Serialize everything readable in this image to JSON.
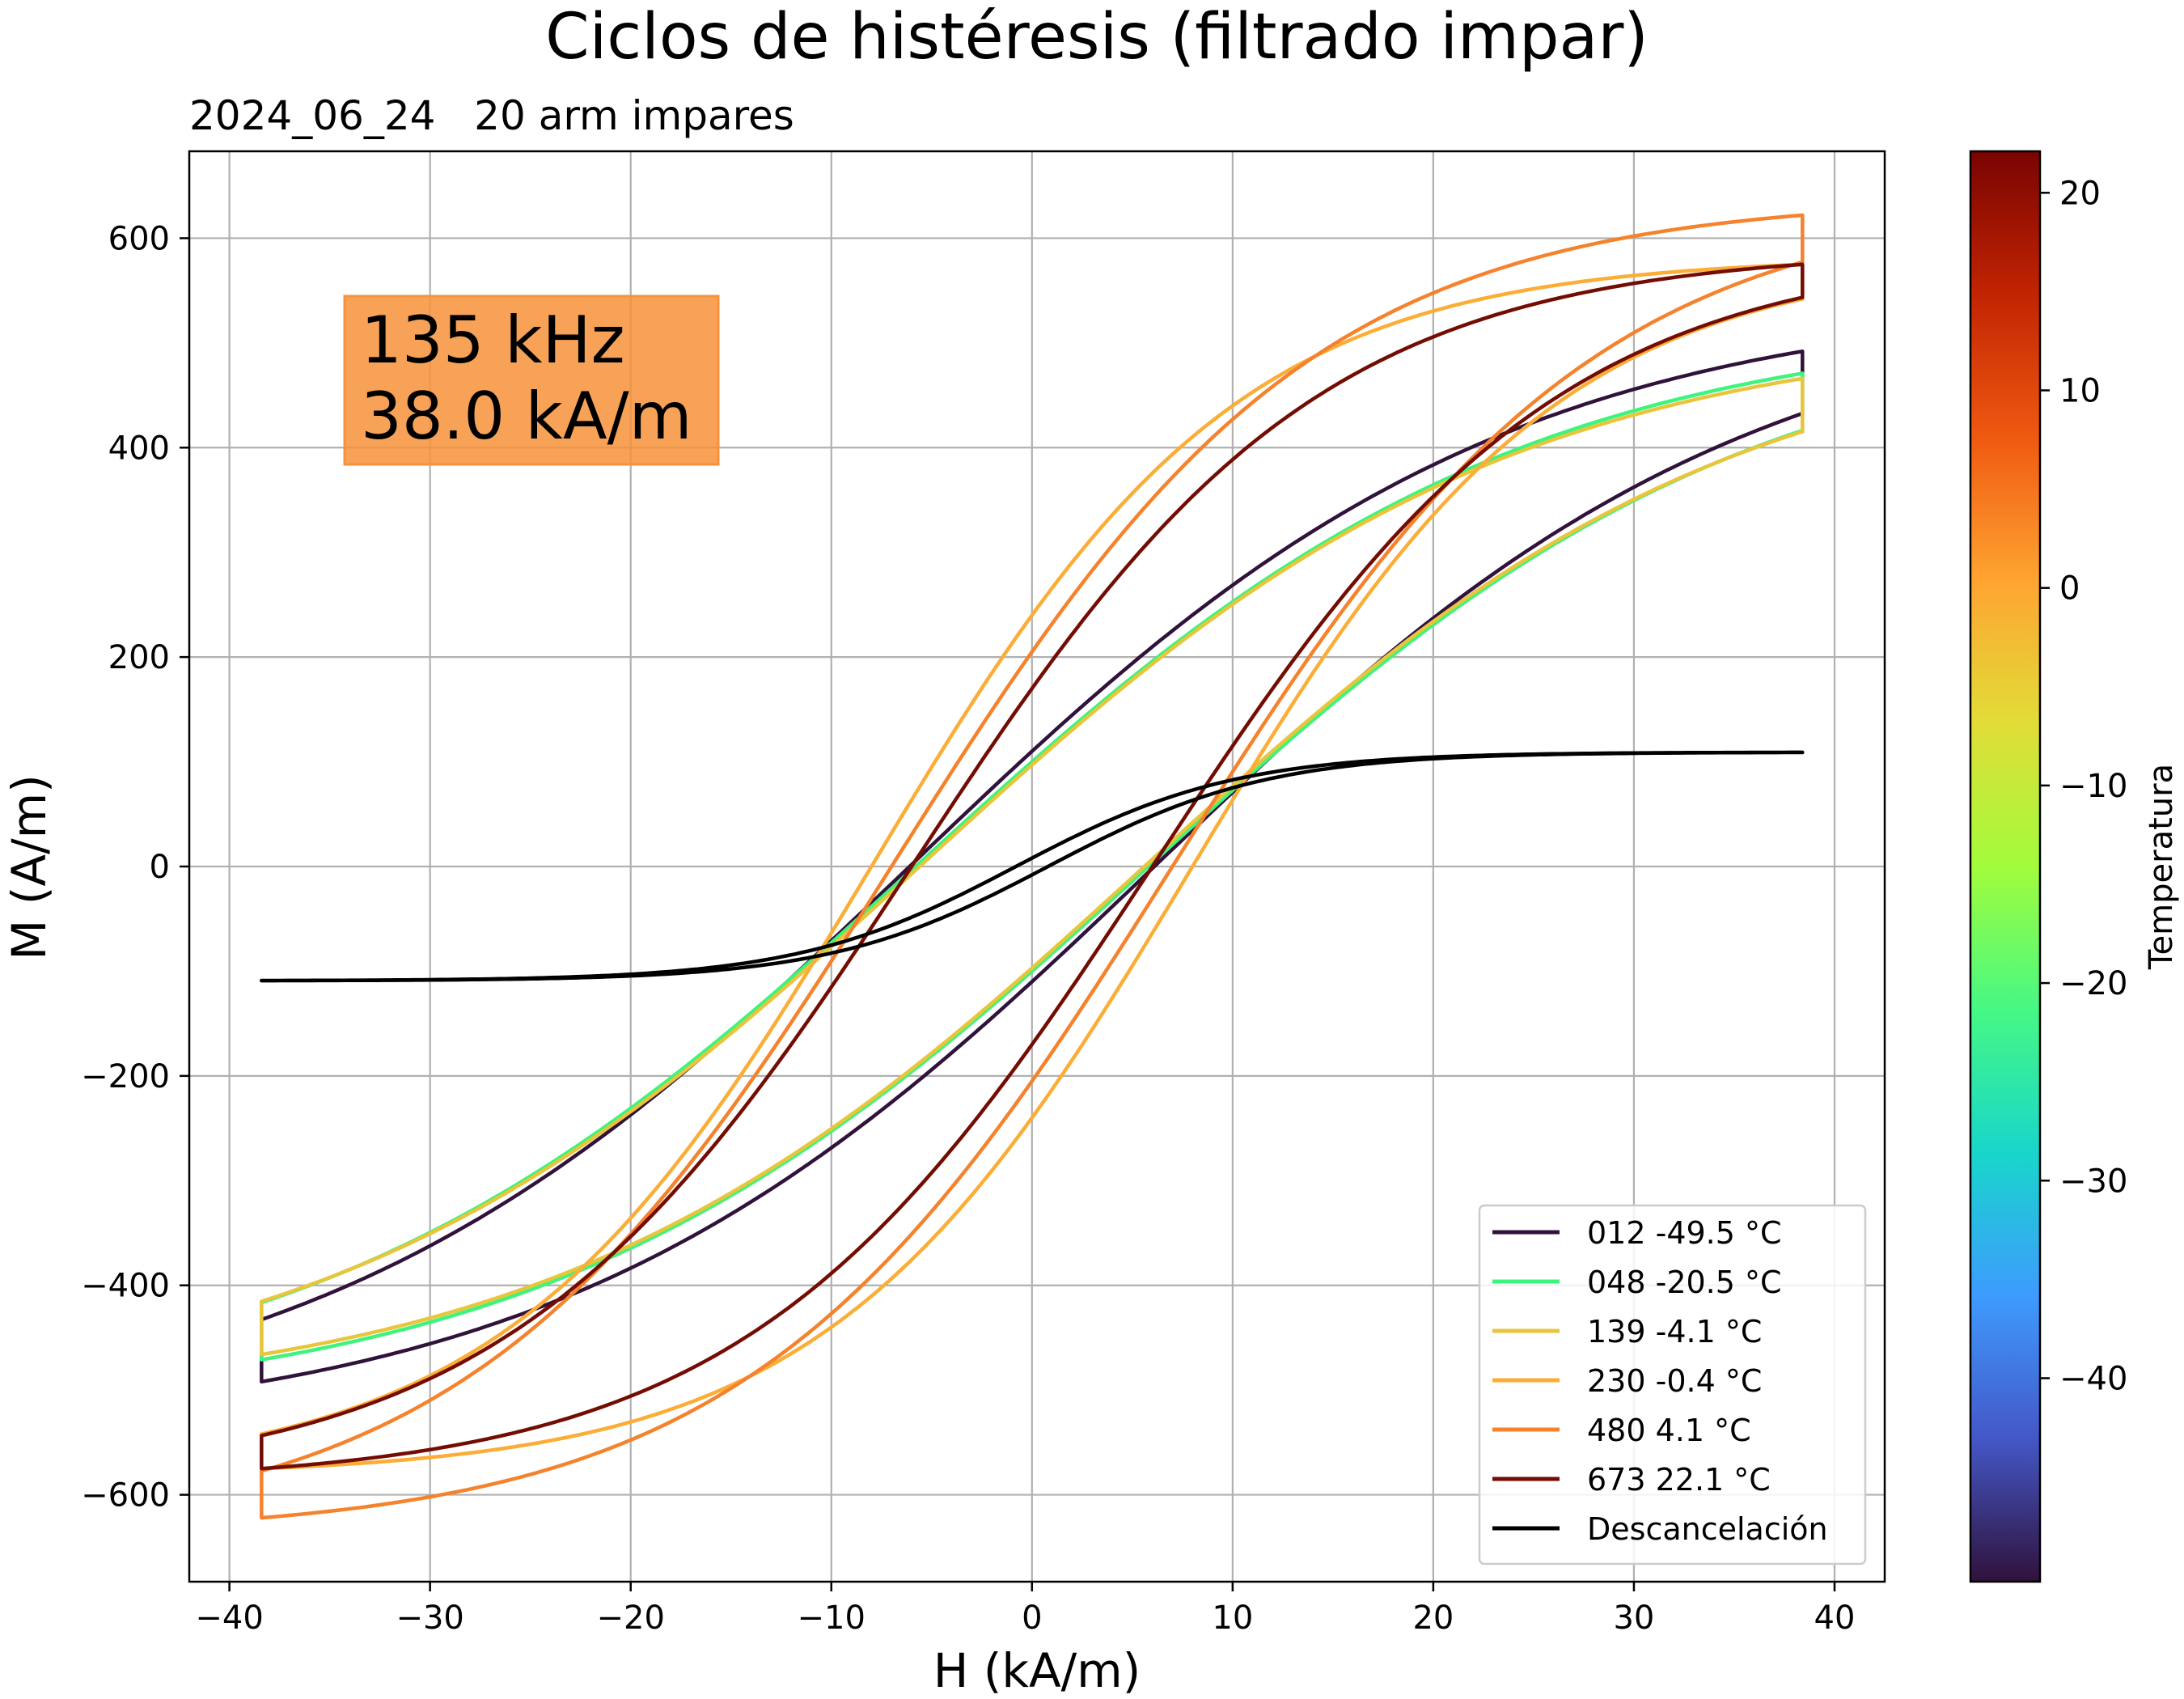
{
  "chart_data": {
    "type": "line",
    "title": "Ciclos de histéresis (filtrado impar)",
    "subtitle": "2024_06_24   20 arm impares",
    "xlabel": "H (kA/m)",
    "ylabel": "M (A/m)",
    "xlim": [
      -42,
      42.5
    ],
    "ylim": [
      -683,
      683
    ],
    "xticks": [
      -40,
      -30,
      -20,
      -10,
      0,
      10,
      20,
      30,
      40
    ],
    "yticks": [
      -600,
      -400,
      -200,
      0,
      200,
      400,
      600
    ],
    "xtick_labels": [
      "−40",
      "−30",
      "−20",
      "−10",
      "0",
      "10",
      "20",
      "30",
      "40"
    ],
    "ytick_labels": [
      "−600",
      "−400",
      "−200",
      "0",
      "200",
      "400",
      "600"
    ],
    "grid": true,
    "legend_position": "lower-right",
    "annotation": {
      "line1": "135 kHz",
      "line2": "38.0 kA/m",
      "color": "#f7923a",
      "position": "upper-left"
    },
    "colorbar": {
      "label": "Temperatura",
      "colormap": "turbo",
      "range": [
        -50.3,
        22.1
      ],
      "ticks": [
        20,
        10,
        0,
        -10,
        -20,
        -30,
        -40
      ],
      "tick_labels": [
        "20",
        "10",
        "0",
        "−10",
        "−20",
        "−30",
        "−40"
      ]
    },
    "series": [
      {
        "name": "012  -49.5 °C",
        "color": "#30123b",
        "Hmax": 38.4,
        "Mmax": 492,
        "Mr": 110,
        "Hc": 6.1
      },
      {
        "name": "048  -20.5 °C",
        "color": "#3df47c",
        "Hmax": 38.4,
        "Mmax": 471,
        "Mr": 100,
        "Hc": 5.8
      },
      {
        "name": "139  -4.1 °C",
        "color": "#e8c53b",
        "Hmax": 38.4,
        "Mmax": 466,
        "Mr": 97,
        "Hc": 5.6
      },
      {
        "name": "230  -0.4 °C",
        "color": "#fbad36",
        "Hmax": 38.4,
        "Mmax": 575,
        "Mr": 240,
        "Hc": 8.0
      },
      {
        "name": "480  4.1 °C",
        "color": "#f5822c",
        "Hmax": 38.4,
        "Mmax": 622,
        "Mr": 205,
        "Hc": 7.0
      },
      {
        "name": "673  22.1 °C",
        "color": "#730d03",
        "Hmax": 38.4,
        "Mmax": 575,
        "Mr": 170,
        "Hc": 6.0
      },
      {
        "name": "Descancelación",
        "color": "#000000",
        "Hmax": 38.4,
        "Mmax": 109,
        "Mr": 8,
        "Hc": 0.8
      }
    ]
  }
}
